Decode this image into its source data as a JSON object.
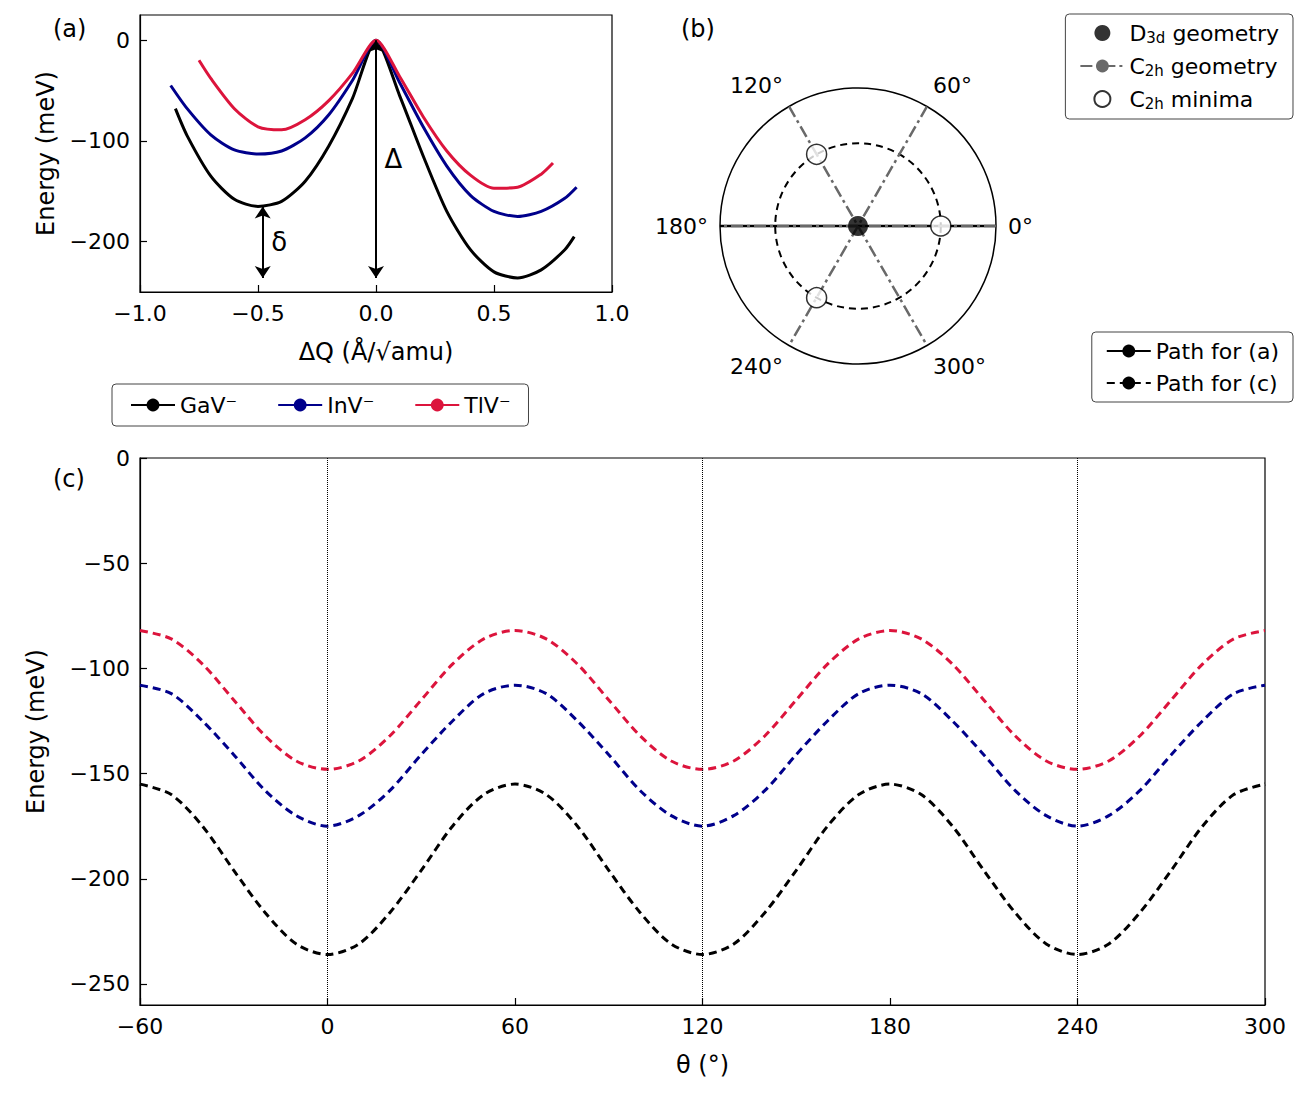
{
  "chart_data": [
    {
      "type": "line",
      "panel_label": "(a)",
      "x_label": "ΔQ (Å/√amu)",
      "y_label": "Energy (meV)",
      "xlim": [
        -1,
        1
      ],
      "xticks": [
        {
          "value": -1,
          "label": "−1.0"
        },
        {
          "value": -0.5,
          "label": "−0.5"
        },
        {
          "value": 0,
          "label": "0.0"
        },
        {
          "value": 0.5,
          "label": "0.5"
        },
        {
          "value": 1,
          "label": "1.0"
        }
      ],
      "ylim": [
        -250,
        25
      ],
      "yticks": [
        {
          "value": -200,
          "label": "−200"
        },
        {
          "value": -100,
          "label": "−100"
        },
        0
      ],
      "grid": false,
      "legend": "below",
      "line_style": "solid",
      "series": [
        {
          "name": "GaV⁻",
          "color": "#000000",
          "x": [
            -0.85,
            -0.8,
            -0.7,
            -0.6,
            -0.5,
            -0.4,
            -0.3,
            -0.2,
            -0.1,
            0,
            0.1,
            0.2,
            0.3,
            0.4,
            0.5,
            0.6,
            0.7,
            0.8,
            0.84
          ],
          "values": [
            -68,
            -95,
            -135,
            -158,
            -165,
            -160,
            -140,
            -105,
            -58,
            0,
            -55,
            -115,
            -170,
            -208,
            -230,
            -236,
            -228,
            -208,
            -195
          ]
        },
        {
          "name": "InV⁻",
          "color": "#00008b",
          "x": [
            -0.87,
            -0.8,
            -0.7,
            -0.6,
            -0.5,
            -0.4,
            -0.3,
            -0.2,
            -0.1,
            0,
            0.1,
            0.2,
            0.3,
            0.4,
            0.5,
            0.6,
            0.7,
            0.8,
            0.85
          ],
          "values": [
            -45,
            -68,
            -94,
            -109,
            -113,
            -110,
            -97,
            -74,
            -40,
            0,
            -42,
            -86,
            -125,
            -154,
            -170,
            -175,
            -170,
            -157,
            -146
          ]
        },
        {
          "name": "TlV⁻",
          "color": "#dc143c",
          "x": [
            -0.75,
            -0.7,
            -0.6,
            -0.5,
            -0.4,
            -0.3,
            -0.2,
            -0.1,
            0,
            0.1,
            0.2,
            0.3,
            0.4,
            0.5,
            0.6,
            0.7,
            0.75
          ],
          "values": [
            -20,
            -38,
            -68,
            -86,
            -89,
            -79,
            -60,
            -33,
            0,
            -36,
            -76,
            -110,
            -134,
            -147,
            -146,
            -133,
            -122
          ]
        }
      ],
      "annotations": [
        {
          "text": "Δ",
          "x": 0,
          "y1": 0,
          "y2": -236
        },
        {
          "text": "δ",
          "x": -0.48,
          "y1": -165,
          "y2": -236
        }
      ]
    },
    {
      "type": "polar",
      "panel_label": "(b)",
      "alim": [
        0,
        360
      ],
      "angle_ticks": [
        {
          "value": 0,
          "label": "0°"
        },
        {
          "value": 60,
          "label": "60°"
        },
        {
          "value": 120,
          "label": "120°"
        },
        {
          "value": 180,
          "label": "180°"
        },
        {
          "value": 240,
          "label": "240°"
        },
        {
          "value": 300,
          "label": "300°"
        }
      ],
      "rlim": [
        0,
        1
      ],
      "legend": "right",
      "series": [
        {
          "name": "Path for (a)",
          "type": "line",
          "color": "#000000",
          "line_style": "solid",
          "segments": [
            [
              [
                1,
                0
              ],
              [
                1,
                180
              ]
            ]
          ]
        },
        {
          "name": "C2h geometry",
          "type": "line",
          "color": "#696969",
          "line_style": "dashdot",
          "segments": [
            [
              [
                1,
                0
              ],
              [
                1,
                180
              ]
            ],
            [
              [
                1,
                60
              ],
              [
                1,
                240
              ]
            ],
            [
              [
                1,
                120
              ],
              [
                1,
                300
              ]
            ]
          ]
        },
        {
          "name": "Path for (c)",
          "type": "circle",
          "color": "#000000",
          "line_style": "dashed",
          "radius": 0.6
        },
        {
          "name": "D3d geometry",
          "type": "scatter",
          "color": "#000000",
          "marker": "filled_circle",
          "points": [
            [
              0,
              0
            ]
          ]
        },
        {
          "name": "C2h minima",
          "type": "scatter",
          "color": "#000000",
          "marker": "open_circle",
          "points": [
            [
              0.6,
              0
            ],
            [
              0.6,
              120
            ],
            [
              0.6,
              240
            ]
          ]
        }
      ],
      "legend_groups": [
        [
          "D3d geometry",
          "C2h geometry",
          "C2h minima"
        ],
        [
          "Path for (a)",
          "Path for (c)"
        ]
      ]
    },
    {
      "type": "line",
      "panel_label": "(c)",
      "x_label": "θ (°)",
      "y_label": "Energy (meV)",
      "xlim": [
        -60,
        300
      ],
      "xticks": [
        {
          "value": -60,
          "label": "−60"
        },
        0,
        60,
        120,
        180,
        240,
        300
      ],
      "ylim": [
        -260,
        0
      ],
      "yticks": [
        {
          "value": -250,
          "label": "−250"
        },
        {
          "value": -200,
          "label": "−200"
        },
        {
          "value": -150,
          "label": "−150"
        },
        {
          "value": -100,
          "label": "−100"
        },
        {
          "value": -50,
          "label": "−50"
        },
        0
      ],
      "grid": false,
      "line_style": "dashed",
      "vlines": [
        0,
        120,
        240
      ],
      "x": [
        -60,
        -50,
        -40,
        -30,
        -20,
        -10,
        0,
        10,
        20,
        30,
        40,
        50,
        60,
        70,
        80,
        90,
        100,
        110,
        120,
        130,
        140,
        150,
        160,
        170,
        180,
        190,
        200,
        210,
        220,
        230,
        240,
        250,
        260,
        270,
        280,
        290,
        300
      ],
      "series": [
        {
          "name": "GaV⁻",
          "color": "#000000",
          "values": [
            -155,
            -160,
            -175,
            -196,
            -216,
            -231,
            -236,
            -231,
            -216,
            -196,
            -175,
            -160,
            -155,
            -160,
            -175,
            -196,
            -216,
            -231,
            -236,
            -231,
            -216,
            -196,
            -175,
            -160,
            -155,
            -160,
            -175,
            -196,
            -216,
            -231,
            -236,
            -231,
            -216,
            -196,
            -175,
            -160,
            -155
          ]
        },
        {
          "name": "InV⁻",
          "color": "#00008b",
          "values": [
            -108,
            -112,
            -125,
            -141,
            -158,
            -170,
            -175,
            -170,
            -158,
            -141,
            -125,
            -112,
            -108,
            -112,
            -125,
            -141,
            -158,
            -170,
            -175,
            -170,
            -158,
            -141,
            -125,
            -112,
            -108,
            -112,
            -125,
            -141,
            -158,
            -170,
            -175,
            -170,
            -158,
            -141,
            -125,
            -112,
            -108
          ]
        },
        {
          "name": "TlV⁻",
          "color": "#dc143c",
          "values": [
            -82,
            -86,
            -98,
            -115,
            -132,
            -144,
            -148,
            -144,
            -132,
            -115,
            -98,
            -86,
            -82,
            -86,
            -98,
            -115,
            -132,
            -144,
            -148,
            -144,
            -132,
            -115,
            -98,
            -86,
            -82,
            -86,
            -98,
            -115,
            -132,
            -144,
            -148,
            -144,
            -132,
            -115,
            -98,
            -86,
            -82
          ]
        }
      ]
    }
  ]
}
